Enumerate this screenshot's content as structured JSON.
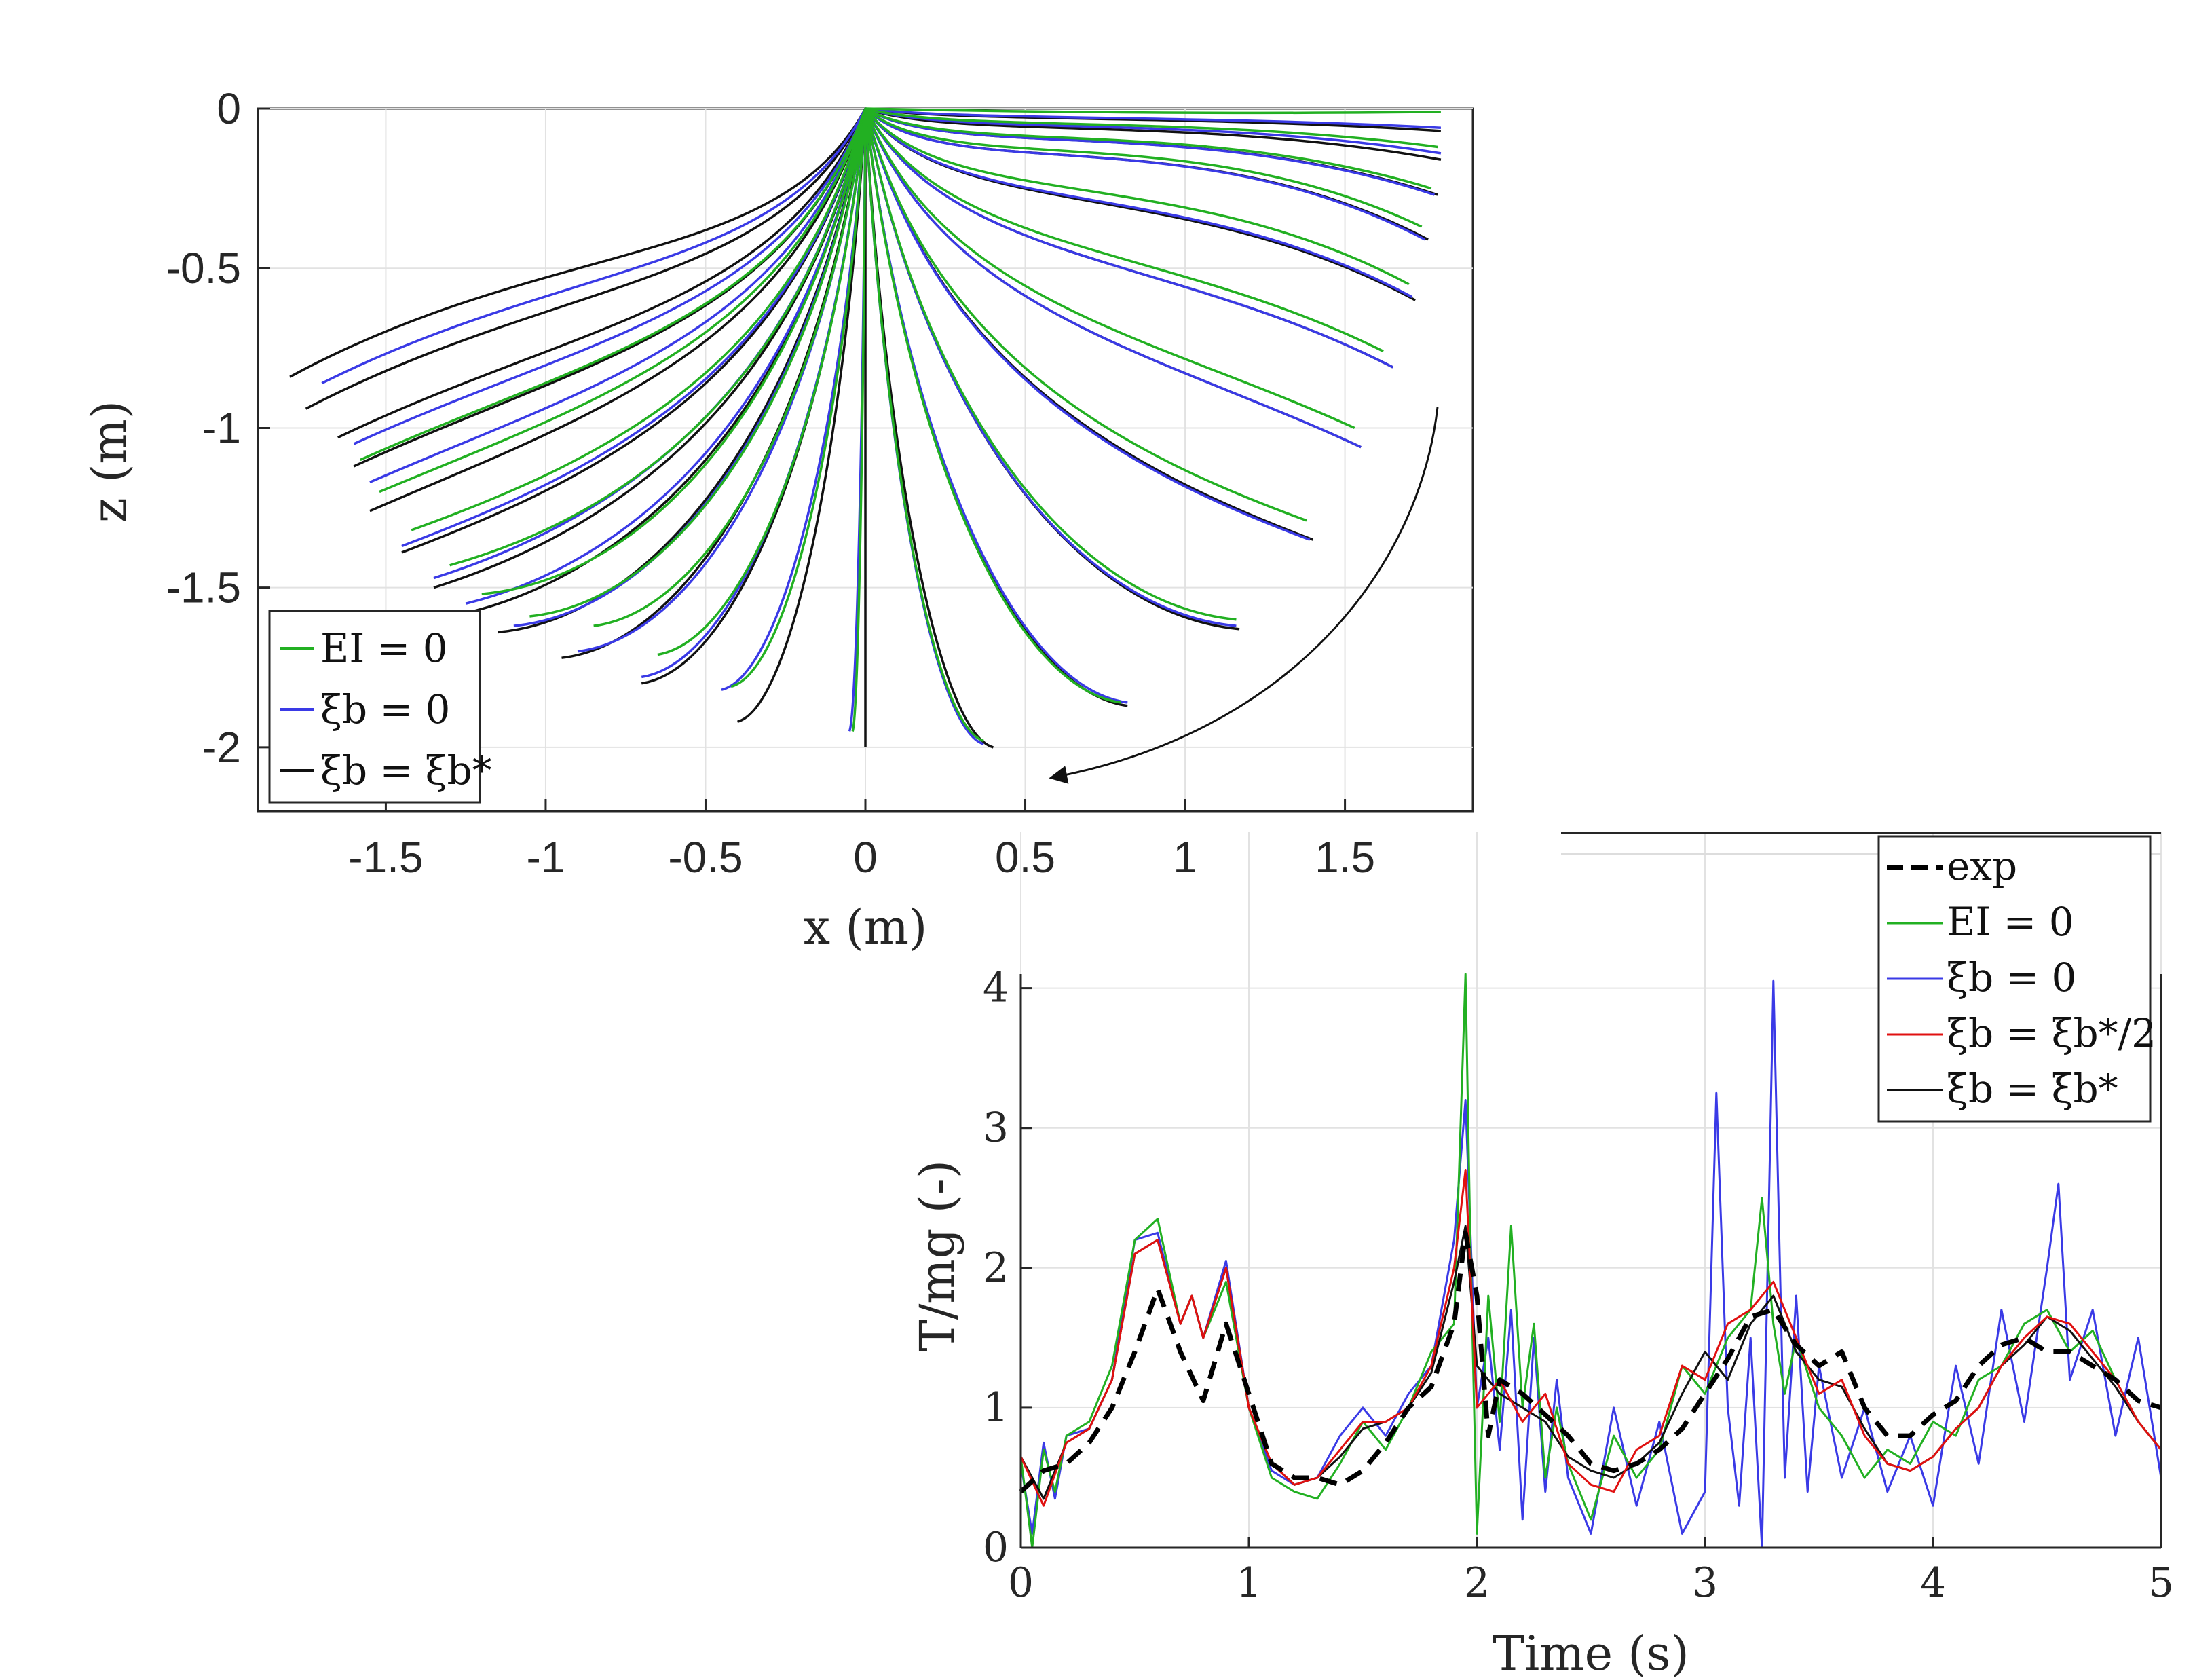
{
  "chart_data": [
    {
      "type": "line",
      "xlabel": "x (m)",
      "ylabel": "z (m)",
      "xlim": [
        -1.9,
        1.9
      ],
      "ylim": [
        -2.2,
        0
      ],
      "xticks": [
        "-1.5",
        "-1",
        "-0.5",
        "0",
        "0.5",
        "1",
        "1.5"
      ],
      "yticks": [
        "0",
        "-0.5",
        "-1",
        "-1.5",
        "-2"
      ],
      "grid": true,
      "legend_position": "bottom-left",
      "legend": [
        "EI = 0",
        "ξb = 0",
        "ξb = ξb*"
      ],
      "colors": {
        "EI0": "#22b022",
        "xi0": "#3a3ae6",
        "xistar": "#111111"
      },
      "annotation": "curved arrow indicating motion direction (clockwise)",
      "series": [
        {
          "name": "ξb = ξb*",
          "end_points": [
            [
              -1.8,
              -0.84
            ],
            [
              -1.75,
              -0.94
            ],
            [
              -1.65,
              -1.03
            ],
            [
              -1.6,
              -1.12
            ],
            [
              -1.55,
              -1.26
            ],
            [
              -1.45,
              -1.39
            ],
            [
              -1.35,
              -1.5
            ],
            [
              -1.25,
              -1.58
            ],
            [
              -1.15,
              -1.64
            ],
            [
              -0.95,
              -1.72
            ],
            [
              -0.7,
              -1.8
            ],
            [
              -0.4,
              -1.92
            ],
            [
              0.0,
              -2.0
            ],
            [
              0.4,
              -2.0
            ],
            [
              0.82,
              -1.87
            ],
            [
              1.17,
              -1.63
            ],
            [
              1.4,
              -1.35
            ],
            [
              1.55,
              -1.06
            ],
            [
              1.65,
              -0.81
            ],
            [
              1.72,
              -0.6
            ],
            [
              1.76,
              -0.41
            ],
            [
              1.79,
              -0.27
            ],
            [
              1.8,
              -0.16
            ],
            [
              1.8,
              -0.07
            ]
          ]
        },
        {
          "name": "ξb = 0",
          "end_points": [
            [
              -1.7,
              -0.86
            ],
            [
              -1.6,
              -1.05
            ],
            [
              -1.55,
              -1.17
            ],
            [
              -1.45,
              -1.37
            ],
            [
              -1.35,
              -1.47
            ],
            [
              -1.25,
              -1.55
            ],
            [
              -1.1,
              -1.62
            ],
            [
              -0.9,
              -1.7
            ],
            [
              -0.7,
              -1.78
            ],
            [
              -0.45,
              -1.82
            ],
            [
              -0.05,
              -1.95
            ],
            [
              0.37,
              -1.99
            ],
            [
              0.82,
              -1.86
            ],
            [
              1.16,
              -1.62
            ],
            [
              1.39,
              -1.35
            ],
            [
              1.55,
              -1.06
            ],
            [
              1.65,
              -0.81
            ],
            [
              1.71,
              -0.59
            ],
            [
              1.75,
              -0.41
            ],
            [
              1.78,
              -0.27
            ],
            [
              1.8,
              -0.14
            ],
            [
              1.8,
              -0.06
            ]
          ]
        },
        {
          "name": "EI = 0",
          "end_points": [
            [
              -1.58,
              -1.1
            ],
            [
              -1.52,
              -1.2
            ],
            [
              -1.42,
              -1.32
            ],
            [
              -1.3,
              -1.43
            ],
            [
              -1.2,
              -1.52
            ],
            [
              -1.05,
              -1.59
            ],
            [
              -0.85,
              -1.62
            ],
            [
              -0.65,
              -1.71
            ],
            [
              -0.42,
              -1.81
            ],
            [
              -0.04,
              -1.95
            ],
            [
              0.37,
              -1.98
            ],
            [
              0.8,
              -1.86
            ],
            [
              1.16,
              -1.6
            ],
            [
              1.38,
              -1.29
            ],
            [
              1.53,
              -1.0
            ],
            [
              1.62,
              -0.76
            ],
            [
              1.7,
              -0.55
            ],
            [
              1.74,
              -0.37
            ],
            [
              1.77,
              -0.25
            ],
            [
              1.79,
              -0.12
            ],
            [
              1.8,
              -0.01
            ]
          ]
        }
      ]
    },
    {
      "type": "line",
      "xlabel": "Time (s)",
      "ylabel": "T/mg (-)",
      "xlim": [
        0,
        5
      ],
      "ylim": [
        0,
        4.1
      ],
      "xticks": [
        "0",
        "1",
        "2",
        "3",
        "4",
        "5"
      ],
      "yticks": [
        "0",
        "1",
        "2",
        "3",
        "4"
      ],
      "grid": true,
      "legend_position": "top-right",
      "legend": [
        "exp",
        "EI = 0",
        "ξb = 0",
        "ξb = ξb*/2",
        "ξb = ξb*"
      ],
      "colors": {
        "exp": "#000000",
        "EI0": "#22b022",
        "xi0": "#3a3ae6",
        "xihalf": "#e01010",
        "xistar": "#111111"
      },
      "series": [
        {
          "name": "exp",
          "style": "dashed",
          "x": [
            0,
            0.1,
            0.2,
            0.3,
            0.4,
            0.5,
            0.6,
            0.7,
            0.8,
            0.9,
            1.0,
            1.1,
            1.2,
            1.3,
            1.4,
            1.5,
            1.6,
            1.7,
            1.8,
            1.9,
            1.95,
            2.0,
            2.05,
            2.1,
            2.2,
            2.3,
            2.4,
            2.5,
            2.6,
            2.7,
            2.8,
            2.9,
            3.0,
            3.1,
            3.2,
            3.3,
            3.4,
            3.5,
            3.6,
            3.7,
            3.8,
            3.9,
            4.0,
            4.1,
            4.2,
            4.3,
            4.4,
            4.5,
            4.6,
            4.7,
            4.8,
            4.9,
            5.0
          ],
          "y": [
            0.4,
            0.55,
            0.6,
            0.75,
            1.0,
            1.4,
            1.85,
            1.4,
            1.05,
            1.6,
            1.1,
            0.6,
            0.5,
            0.5,
            0.45,
            0.55,
            0.75,
            1.0,
            1.15,
            1.6,
            2.25,
            1.8,
            0.8,
            1.2,
            1.1,
            0.95,
            0.8,
            0.6,
            0.55,
            0.6,
            0.7,
            0.85,
            1.1,
            1.35,
            1.65,
            1.7,
            1.45,
            1.3,
            1.4,
            1.0,
            0.8,
            0.8,
            0.95,
            1.05,
            1.3,
            1.45,
            1.5,
            1.4,
            1.4,
            1.3,
            1.2,
            1.05,
            1.0
          ]
        },
        {
          "name": "EI = 0",
          "x": [
            0,
            0.05,
            0.1,
            0.15,
            0.2,
            0.3,
            0.4,
            0.5,
            0.6,
            0.7,
            0.75,
            0.8,
            0.9,
            1.0,
            1.1,
            1.2,
            1.3,
            1.4,
            1.5,
            1.6,
            1.7,
            1.8,
            1.9,
            1.95,
            1.97,
            2.0,
            2.05,
            2.1,
            2.15,
            2.2,
            2.25,
            2.3,
            2.35,
            2.4,
            2.5,
            2.6,
            2.7,
            2.8,
            2.9,
            3.0,
            3.1,
            3.2,
            3.25,
            3.3,
            3.35,
            3.4,
            3.5,
            3.6,
            3.7,
            3.8,
            3.9,
            4.0,
            4.1,
            4.2,
            4.3,
            4.4,
            4.5,
            4.6,
            4.7,
            4.8,
            4.9,
            5.0
          ],
          "y": [
            0.65,
            0.0,
            0.7,
            0.4,
            0.8,
            0.9,
            1.3,
            2.2,
            2.35,
            1.6,
            1.8,
            1.5,
            1.9,
            1.0,
            0.5,
            0.4,
            0.35,
            0.6,
            0.9,
            0.7,
            1.0,
            1.4,
            1.6,
            4.1,
            2.3,
            0.1,
            1.8,
            0.9,
            2.3,
            1.0,
            1.6,
            0.5,
            1.0,
            0.6,
            0.2,
            0.8,
            0.5,
            0.7,
            1.3,
            1.1,
            1.5,
            1.7,
            2.5,
            1.6,
            1.1,
            1.5,
            1.0,
            0.8,
            0.5,
            0.7,
            0.6,
            0.9,
            0.8,
            1.2,
            1.3,
            1.6,
            1.7,
            1.4,
            1.55,
            1.2,
            0.9,
            0.7
          ]
        },
        {
          "name": "ξb = 0",
          "x": [
            0,
            0.05,
            0.1,
            0.15,
            0.2,
            0.3,
            0.4,
            0.5,
            0.6,
            0.7,
            0.75,
            0.8,
            0.9,
            1.0,
            1.1,
            1.2,
            1.3,
            1.4,
            1.5,
            1.6,
            1.7,
            1.8,
            1.9,
            1.95,
            2.0,
            2.05,
            2.1,
            2.15,
            2.2,
            2.25,
            2.3,
            2.35,
            2.4,
            2.5,
            2.6,
            2.7,
            2.8,
            2.9,
            3.0,
            3.05,
            3.1,
            3.15,
            3.2,
            3.25,
            3.3,
            3.35,
            3.4,
            3.45,
            3.5,
            3.6,
            3.7,
            3.8,
            3.9,
            4.0,
            4.1,
            4.2,
            4.3,
            4.4,
            4.5,
            4.55,
            4.6,
            4.7,
            4.8,
            4.9,
            5.0
          ],
          "y": [
            0.6,
            0.1,
            0.75,
            0.35,
            0.8,
            0.85,
            1.2,
            2.2,
            2.25,
            1.6,
            1.8,
            1.5,
            2.05,
            1.0,
            0.55,
            0.45,
            0.5,
            0.8,
            1.0,
            0.8,
            1.1,
            1.3,
            2.2,
            3.2,
            1.0,
            1.5,
            0.7,
            1.7,
            0.2,
            1.5,
            0.4,
            1.2,
            0.5,
            0.1,
            1.0,
            0.3,
            0.9,
            0.1,
            0.4,
            3.25,
            1.0,
            0.3,
            1.5,
            0.0,
            4.05,
            0.5,
            1.8,
            0.4,
            1.3,
            0.5,
            1.0,
            0.4,
            0.8,
            0.3,
            1.3,
            0.6,
            1.7,
            0.9,
            2.0,
            2.6,
            1.2,
            1.7,
            0.8,
            1.5,
            0.5
          ]
        },
        {
          "name": "ξb = ξb*/2",
          "x": [
            0,
            0.1,
            0.2,
            0.3,
            0.4,
            0.5,
            0.6,
            0.7,
            0.75,
            0.8,
            0.9,
            1.0,
            1.1,
            1.2,
            1.3,
            1.4,
            1.5,
            1.6,
            1.7,
            1.8,
            1.9,
            1.95,
            2.0,
            2.1,
            2.2,
            2.3,
            2.4,
            2.5,
            2.6,
            2.7,
            2.8,
            2.9,
            3.0,
            3.1,
            3.2,
            3.3,
            3.4,
            3.5,
            3.6,
            3.7,
            3.8,
            3.9,
            4.0,
            4.1,
            4.2,
            4.3,
            4.4,
            4.5,
            4.6,
            4.7,
            4.8,
            4.9,
            5.0
          ],
          "y": [
            0.65,
            0.3,
            0.75,
            0.85,
            1.2,
            2.1,
            2.2,
            1.6,
            1.8,
            1.5,
            2.0,
            1.0,
            0.6,
            0.45,
            0.5,
            0.7,
            0.9,
            0.9,
            1.0,
            1.3,
            2.0,
            2.7,
            1.0,
            1.2,
            0.9,
            1.1,
            0.6,
            0.45,
            0.4,
            0.7,
            0.8,
            1.3,
            1.2,
            1.6,
            1.7,
            1.9,
            1.5,
            1.1,
            1.2,
            0.8,
            0.6,
            0.55,
            0.65,
            0.85,
            1.0,
            1.3,
            1.5,
            1.65,
            1.6,
            1.4,
            1.2,
            0.9,
            0.7
          ]
        },
        {
          "name": "ξb = ξb*",
          "x": [
            0,
            0.1,
            0.2,
            0.3,
            0.4,
            0.5,
            0.6,
            0.7,
            0.75,
            0.8,
            0.9,
            1.0,
            1.1,
            1.2,
            1.3,
            1.4,
            1.5,
            1.6,
            1.7,
            1.8,
            1.9,
            1.95,
            2.0,
            2.1,
            2.2,
            2.3,
            2.4,
            2.5,
            2.6,
            2.7,
            2.8,
            2.9,
            3.0,
            3.1,
            3.2,
            3.3,
            3.4,
            3.5,
            3.6,
            3.7,
            3.8,
            3.9,
            4.0,
            4.1,
            4.2,
            4.3,
            4.4,
            4.5,
            4.6,
            4.7,
            4.8,
            4.9,
            5.0
          ],
          "y": [
            0.65,
            0.35,
            0.75,
            0.85,
            1.2,
            2.1,
            2.2,
            1.6,
            1.8,
            1.5,
            2.0,
            1.0,
            0.6,
            0.45,
            0.5,
            0.65,
            0.85,
            0.9,
            1.0,
            1.25,
            1.9,
            2.3,
            1.3,
            1.1,
            1.0,
            0.9,
            0.65,
            0.55,
            0.5,
            0.6,
            0.75,
            1.1,
            1.4,
            1.2,
            1.6,
            1.8,
            1.4,
            1.2,
            1.15,
            0.85,
            0.6,
            0.55,
            0.65,
            0.85,
            1.0,
            1.3,
            1.45,
            1.65,
            1.55,
            1.35,
            1.15,
            0.9,
            0.7
          ]
        }
      ]
    }
  ]
}
